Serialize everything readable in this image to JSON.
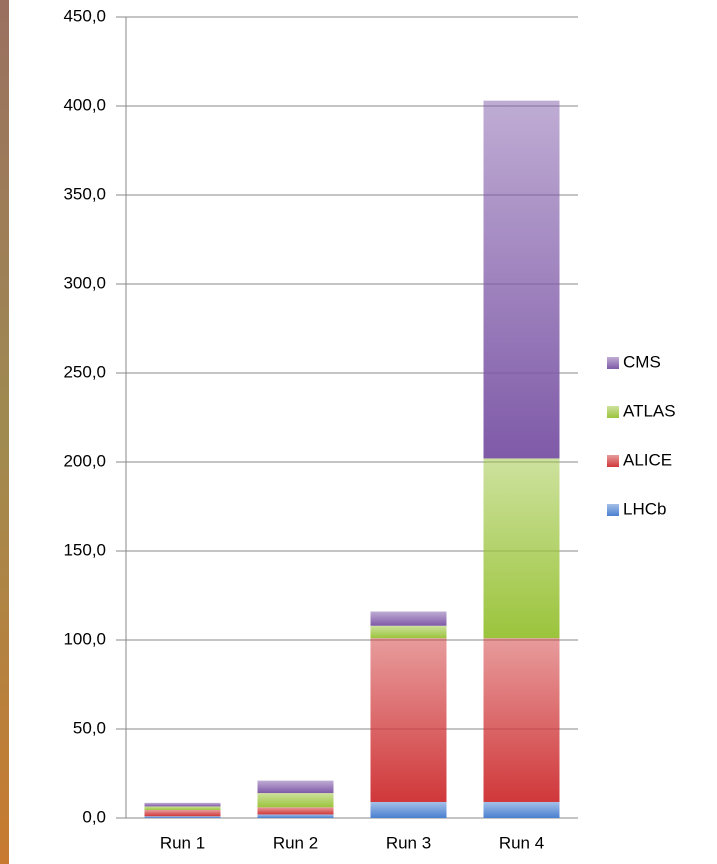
{
  "chart_data": {
    "type": "stacked_bar",
    "categories": [
      "Run 1",
      "Run 2",
      "Run 3",
      "Run 4"
    ],
    "series": [
      {
        "name": "LHCb",
        "color": "#4a80d0",
        "values": [
          1,
          2,
          9,
          9
        ]
      },
      {
        "name": "ALICE",
        "color": "#d0383a",
        "values": [
          3.5,
          4,
          92,
          92
        ]
      },
      {
        "name": "ATLAS",
        "color": "#9bc43c",
        "values": [
          2,
          8,
          7,
          101
        ]
      },
      {
        "name": "CMS",
        "color": "#7f5aa8",
        "values": [
          2,
          7,
          8,
          201
        ]
      }
    ],
    "ylim": [
      0,
      450
    ],
    "yticks": [
      {
        "value": 0,
        "label": "0,0"
      },
      {
        "value": 50,
        "label": "50,0"
      },
      {
        "value": 100,
        "label": "100,0"
      },
      {
        "value": 150,
        "label": "150,0"
      },
      {
        "value": 200,
        "label": "200,0"
      },
      {
        "value": 250,
        "label": "250,0"
      },
      {
        "value": 300,
        "label": "300,0"
      },
      {
        "value": 350,
        "label": "350,0"
      },
      {
        "value": 400,
        "label": "400,0"
      },
      {
        "value": 450,
        "label": "450,0"
      }
    ],
    "grid": true,
    "legend": "right"
  }
}
